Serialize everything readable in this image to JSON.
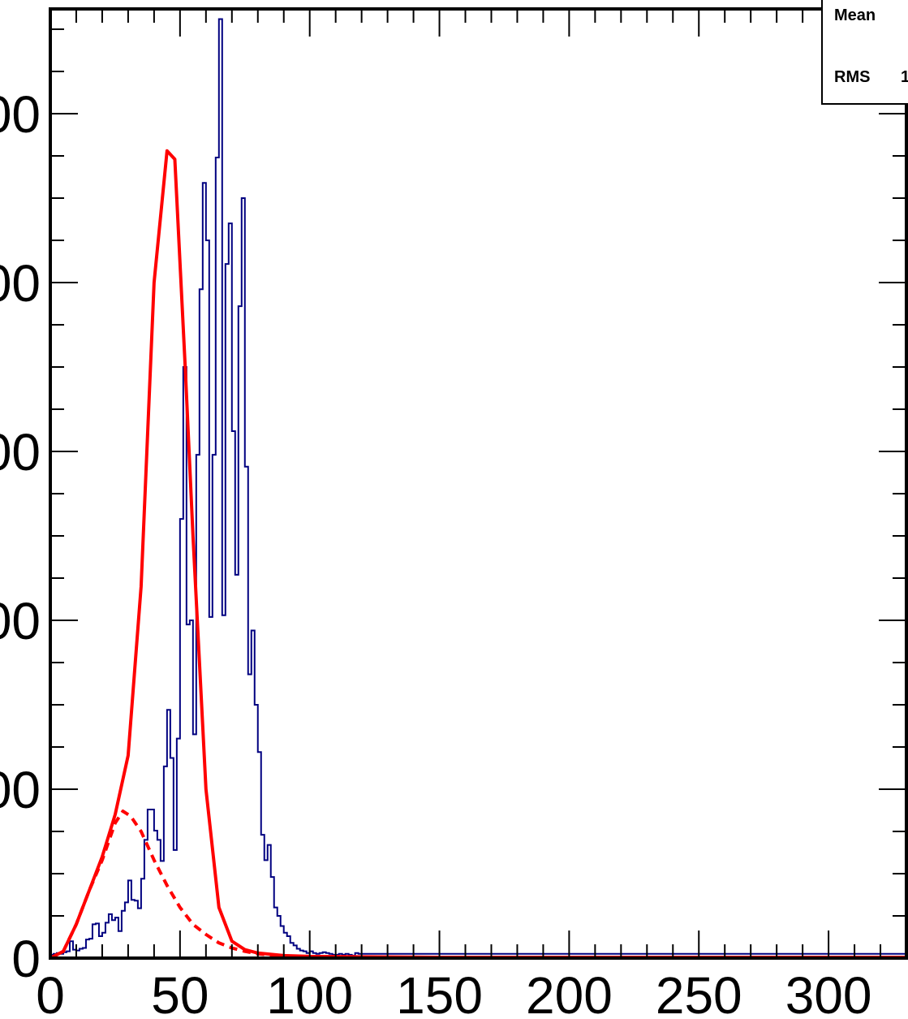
{
  "chart_data": {
    "type": "histogram",
    "title": "",
    "xlabel": "",
    "ylabel": "",
    "xlim": [
      0,
      330
    ],
    "ylim": [
      0,
      5620
    ],
    "x_ticks": [
      0,
      50,
      100,
      150,
      200,
      250,
      300
    ],
    "x_tick_labels": [
      "0",
      "50",
      "100",
      "150",
      "200",
      "250",
      "300"
    ],
    "y_ticks": [
      0,
      1000,
      2000,
      3000,
      4000,
      5000
    ],
    "y_tick_labels": [
      "0",
      "00",
      "00",
      "00",
      "00",
      "00"
    ],
    "grid": false,
    "legend": "none",
    "stats_box": {
      "mean_label": "Mean",
      "rms_label": "RMS",
      "rms_value_visible": "1"
    },
    "histogram": {
      "color": "#000080",
      "bin_width": 1.25,
      "bins_start": 0,
      "baseline_after_x": 110,
      "baseline_value": 25,
      "values": [
        20,
        25,
        30,
        25,
        35,
        40,
        100,
        50,
        45,
        55,
        60,
        110,
        115,
        200,
        205,
        130,
        150,
        210,
        260,
        225,
        240,
        160,
        280,
        330,
        460,
        345,
        340,
        295,
        470,
        700,
        880,
        880,
        755,
        700,
        575,
        1135,
        1470,
        1185,
        640,
        1300,
        2600,
        3500,
        1975,
        2000,
        1325,
        2980,
        3960,
        4590,
        4250,
        2020,
        2980,
        4740,
        5560,
        2030,
        4110,
        4350,
        3120,
        2270,
        3860,
        4500,
        2910,
        1680,
        1940,
        1500,
        1220,
        730,
        580,
        670,
        480,
        300,
        250,
        190,
        150,
        130,
        90,
        75,
        55,
        45,
        40,
        30,
        40,
        30,
        25,
        30,
        35,
        30,
        25,
        20,
        20,
        25,
        20,
        25,
        20,
        15,
        30
      ]
    },
    "series": [
      {
        "style": "solid",
        "color": "#ff0000",
        "x": [
          0,
          5,
          10,
          15,
          20,
          25,
          30,
          35,
          40,
          45,
          48,
          52,
          55,
          60,
          65,
          70,
          75,
          80,
          90,
          100,
          120,
          150,
          200,
          250,
          330
        ],
        "y": [
          0,
          40,
          200,
          400,
          600,
          850,
          1200,
          2200,
          4000,
          4780,
          4730,
          3500,
          2500,
          1000,
          300,
          100,
          50,
          30,
          15,
          10,
          8,
          5,
          5,
          5,
          5
        ]
      },
      {
        "style": "dashed",
        "color": "#ff0000",
        "x": [
          0,
          5,
          10,
          15,
          20,
          25,
          28,
          31,
          35,
          40,
          45,
          50,
          55,
          60,
          65,
          70,
          75,
          80,
          90,
          100,
          120,
          150,
          200,
          250,
          330
        ],
        "y": [
          0,
          40,
          200,
          400,
          580,
          800,
          870,
          840,
          750,
          580,
          430,
          300,
          200,
          140,
          90,
          60,
          40,
          25,
          10,
          5,
          2,
          0,
          0,
          0,
          0
        ]
      }
    ]
  }
}
